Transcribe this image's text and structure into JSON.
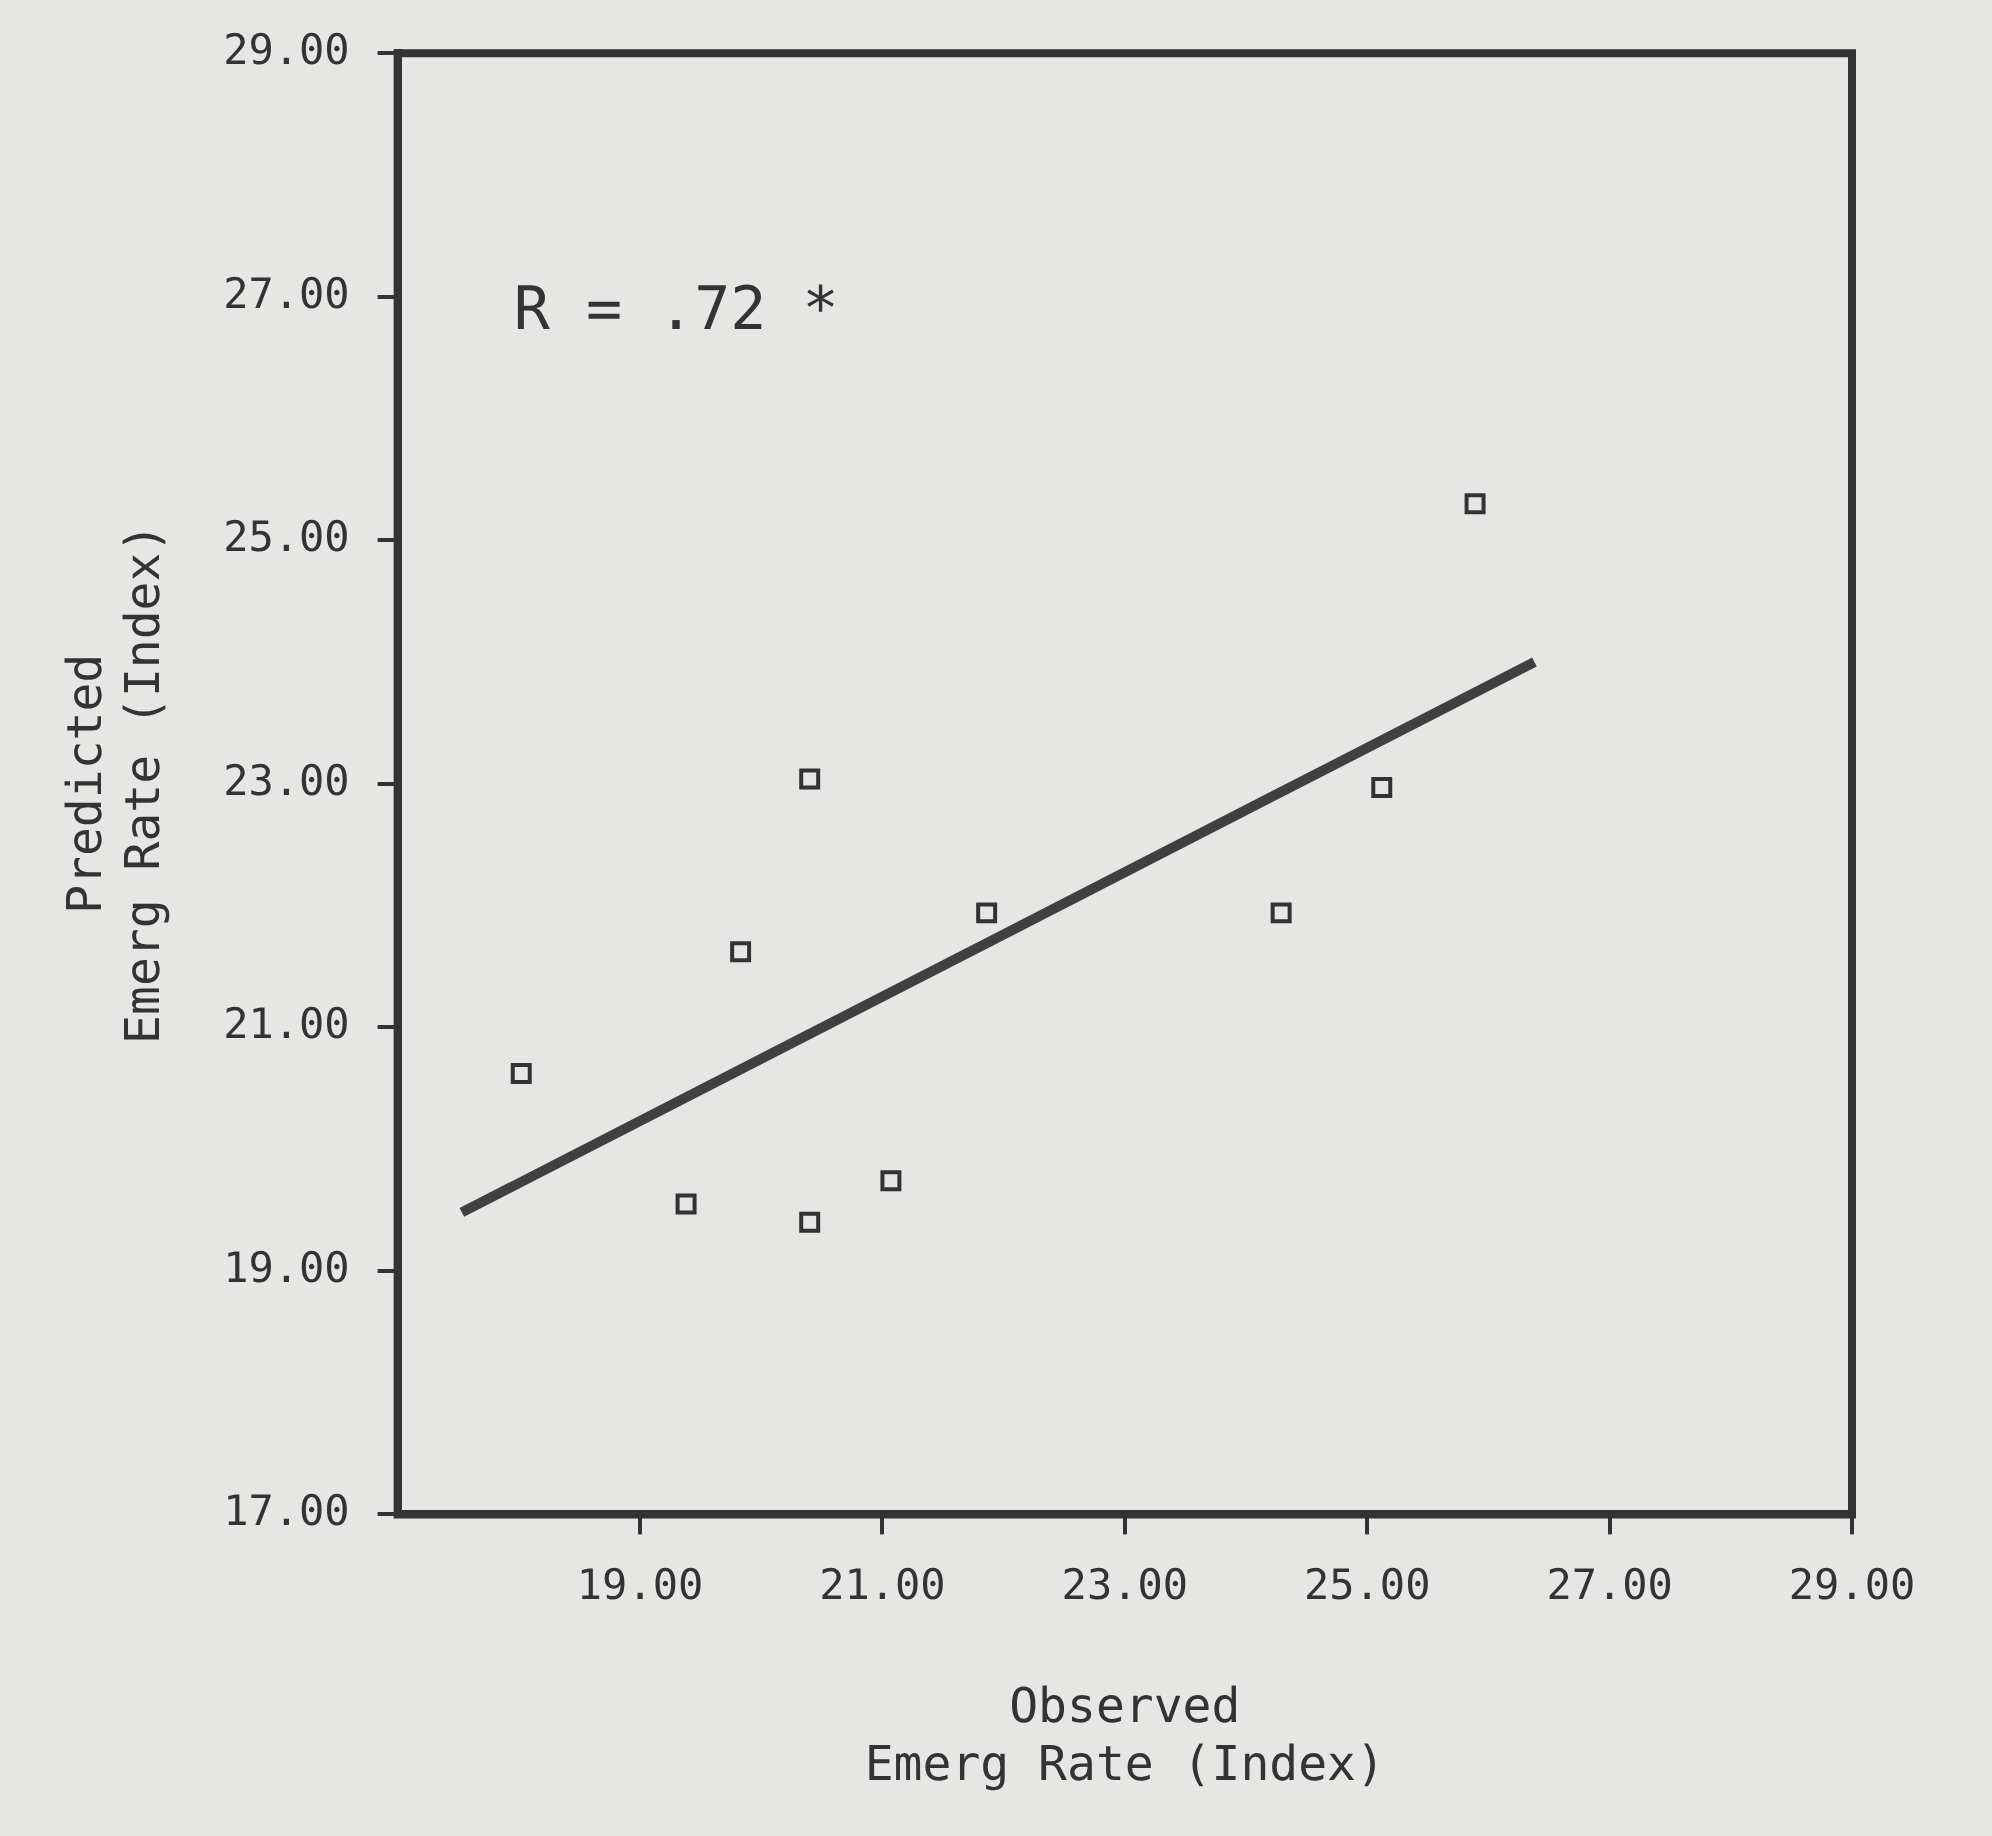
{
  "chart_data": {
    "type": "scatter",
    "xlabel": "Observed\nEmerg Rate (Index)",
    "ylabel": "Predicted\nEmerg Rate (Index)",
    "annotations": [
      "R = .72 *"
    ],
    "xlim": [
      17,
      29
    ],
    "ylim": [
      17,
      29
    ],
    "xticks": [
      {
        "value": 19,
        "label": "19.00"
      },
      {
        "value": 21,
        "label": "21.00"
      },
      {
        "value": 23,
        "label": "23.00"
      },
      {
        "value": 25,
        "label": "25.00"
      },
      {
        "value": 27,
        "label": "27.00"
      },
      {
        "value": 29,
        "label": "29.00"
      }
    ],
    "yticks": [
      {
        "value": 17,
        "label": "17.00"
      },
      {
        "value": 19,
        "label": "19.00"
      },
      {
        "value": 21,
        "label": "21.00"
      },
      {
        "value": 23,
        "label": "23.00"
      },
      {
        "value": 25,
        "label": "25.00"
      },
      {
        "value": 27,
        "label": "27.00"
      },
      {
        "value": 29,
        "label": "29.00"
      }
    ],
    "grid": false,
    "legend": false,
    "marker": "square",
    "series": [
      {
        "color": "#333333",
        "x": [
          18.02,
          19.38,
          19.83,
          20.4,
          20.4,
          21.07,
          21.86,
          24.29,
          25.12,
          25.89
        ],
        "values": [
          20.62,
          19.55,
          21.62,
          23.04,
          19.4,
          19.74,
          21.94,
          21.94,
          22.97,
          25.3
        ]
      },
      {
        "type": "line",
        "color": "#404040",
        "x": [
          17.53,
          26.38
        ],
        "values": [
          19.48,
          24.0
        ],
        "marker": "none"
      }
    ]
  }
}
